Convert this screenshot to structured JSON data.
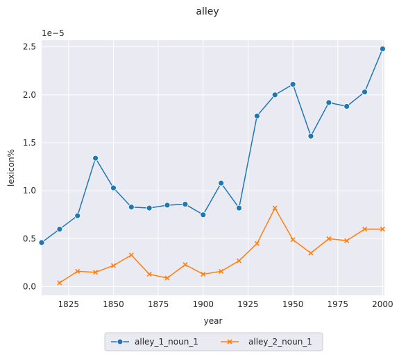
{
  "chart_data": {
    "type": "line",
    "title": "alley",
    "xlabel": "year",
    "ylabel": "lexicon%",
    "offset_text": "1e−5",
    "xlim": [
      1810,
      2001
    ],
    "ylim": [
      -0.09,
      2.57
    ],
    "xticks": [
      1825,
      1850,
      1875,
      1900,
      1925,
      1950,
      1975,
      2000
    ],
    "yticks": [
      0.0,
      0.5,
      1.0,
      1.5,
      2.0,
      2.5
    ],
    "ytick_labels": [
      "0.0",
      "0.5",
      "1.0",
      "1.5",
      "2.0",
      "2.5"
    ],
    "grid": true,
    "legend_position": "bottom-center",
    "series": [
      {
        "name": "alley_1_noun_1",
        "color": "#1f77b4",
        "marker": "circle",
        "x": [
          1810,
          1820,
          1830,
          1840,
          1850,
          1860,
          1870,
          1880,
          1890,
          1900,
          1910,
          1920,
          1930,
          1940,
          1950,
          1960,
          1970,
          1980,
          1990,
          2000
        ],
        "y": [
          0.46,
          0.6,
          0.74,
          1.34,
          1.03,
          0.83,
          0.82,
          0.85,
          0.86,
          0.75,
          1.08,
          0.82,
          1.78,
          2.0,
          2.11,
          1.57,
          1.92,
          1.88,
          2.03,
          2.48
        ]
      },
      {
        "name": "alley_2_noun_1",
        "color": "#ff7f0e",
        "marker": "x",
        "x": [
          1820,
          1830,
          1840,
          1850,
          1860,
          1870,
          1880,
          1890,
          1900,
          1910,
          1920,
          1930,
          1940,
          1950,
          1960,
          1970,
          1980,
          1990,
          2000
        ],
        "y": [
          0.04,
          0.16,
          0.15,
          0.22,
          0.33,
          0.13,
          0.09,
          0.23,
          0.13,
          0.16,
          0.27,
          0.45,
          0.82,
          0.49,
          0.35,
          0.5,
          0.48,
          0.6,
          0.6
        ]
      }
    ]
  }
}
